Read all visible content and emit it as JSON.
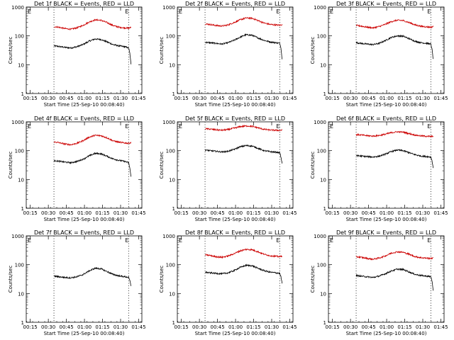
{
  "shared": {
    "ylabel": "Counts/sec",
    "xlabel": "Start Time (25-Sep-10 00:08:40)",
    "x_tick_labels": [
      "00:15",
      "00:30",
      "00:45",
      "01:00",
      "01:15",
      "01:30",
      "01:45"
    ],
    "y_tick_labels": [
      "1",
      "10",
      "100",
      "1000"
    ],
    "event_marker_label": "E",
    "colors": {
      "events": "#000000",
      "lld": "#cc0000",
      "axes": "#000000"
    }
  },
  "chart_data": [
    {
      "type": "line",
      "title": "Det 1f BLACK = Events, RED = LLD",
      "x_unit": "minutes after 00:08:40",
      "ylim": [
        1,
        1000
      ],
      "yscale": "log",
      "x": [
        26,
        30,
        35,
        40,
        45,
        50,
        55,
        60,
        65,
        70,
        75,
        80,
        85,
        88,
        89,
        90
      ],
      "series": [
        {
          "name": "Events",
          "color": "#000000",
          "values": [
            45,
            43,
            40,
            38,
            42,
            50,
            65,
            78,
            75,
            62,
            50,
            45,
            42,
            38,
            25,
            10
          ]
        },
        {
          "name": "LLD",
          "color": "#cc0000",
          "values": [
            210,
            200,
            180,
            170,
            190,
            230,
            300,
            360,
            350,
            290,
            230,
            200,
            190,
            185,
            190,
            200
          ]
        }
      ],
      "event_markers_x": [
        26,
        88
      ],
      "vlines_x": [
        26,
        88
      ]
    },
    {
      "type": "line",
      "title": "Det 2f BLACK = Events, RED = LLD",
      "x_unit": "minutes after 00:08:40",
      "ylim": [
        1,
        1000
      ],
      "yscale": "log",
      "x": [
        26,
        30,
        35,
        40,
        45,
        50,
        55,
        60,
        65,
        70,
        75,
        80,
        85,
        88,
        89,
        90
      ],
      "series": [
        {
          "name": "Events",
          "color": "#000000",
          "values": [
            60,
            58,
            55,
            52,
            58,
            70,
            90,
            110,
            105,
            85,
            70,
            62,
            58,
            55,
            40,
            15
          ]
        },
        {
          "name": "LLD",
          "color": "#cc0000",
          "values": [
            260,
            250,
            230,
            220,
            240,
            290,
            360,
            420,
            410,
            340,
            280,
            250,
            240,
            235,
            240,
            245
          ]
        }
      ],
      "event_markers_x": [
        26,
        88
      ],
      "vlines_x": [
        26,
        88
      ]
    },
    {
      "type": "line",
      "title": "Det 3f BLACK = Events, RED = LLD",
      "x_unit": "minutes after 00:08:40",
      "ylim": [
        1,
        1000
      ],
      "yscale": "log",
      "x": [
        26,
        30,
        35,
        40,
        45,
        50,
        55,
        60,
        65,
        70,
        75,
        80,
        85,
        88,
        89,
        90
      ],
      "series": [
        {
          "name": "Events",
          "color": "#000000",
          "values": [
            58,
            55,
            52,
            50,
            55,
            68,
            88,
            100,
            98,
            80,
            65,
            58,
            55,
            52,
            35,
            15
          ]
        },
        {
          "name": "LLD",
          "color": "#cc0000",
          "values": [
            230,
            220,
            200,
            190,
            210,
            250,
            310,
            350,
            340,
            290,
            240,
            215,
            205,
            200,
            205,
            210
          ]
        }
      ],
      "event_markers_x": [
        26,
        88
      ],
      "vlines_x": [
        26,
        88
      ]
    },
    {
      "type": "line",
      "title": "Det 4f BLACK = Events, RED = LLD",
      "x_unit": "minutes after 00:08:40",
      "ylim": [
        1,
        1000
      ],
      "yscale": "log",
      "x": [
        26,
        30,
        35,
        40,
        45,
        50,
        55,
        60,
        65,
        70,
        75,
        80,
        85,
        88,
        89,
        90
      ],
      "series": [
        {
          "name": "Events",
          "color": "#000000",
          "values": [
            45,
            43,
            40,
            38,
            42,
            50,
            65,
            80,
            78,
            64,
            52,
            46,
            42,
            38,
            25,
            12
          ]
        },
        {
          "name": "LLD",
          "color": "#cc0000",
          "values": [
            200,
            190,
            170,
            160,
            180,
            220,
            290,
            340,
            330,
            280,
            220,
            195,
            185,
            180,
            185,
            190
          ]
        }
      ],
      "event_markers_x": [
        26,
        88
      ],
      "vlines_x": [
        26,
        88
      ]
    },
    {
      "type": "line",
      "title": "Det 5f BLACK = Events, RED = LLD",
      "x_unit": "minutes after 00:08:40",
      "ylim": [
        1,
        1000
      ],
      "yscale": "log",
      "x": [
        26,
        30,
        35,
        40,
        45,
        50,
        55,
        60,
        65,
        70,
        75,
        80,
        85,
        88,
        89,
        90
      ],
      "series": [
        {
          "name": "Events",
          "color": "#000000",
          "values": [
            105,
            100,
            95,
            90,
            95,
            110,
            135,
            150,
            145,
            120,
            100,
            92,
            88,
            85,
            60,
            35
          ]
        },
        {
          "name": "LLD",
          "color": "#cc0000",
          "values": [
            580,
            560,
            530,
            510,
            540,
            600,
            680,
            720,
            700,
            620,
            550,
            520,
            510,
            505,
            510,
            520
          ]
        }
      ],
      "event_markers_x": [
        26,
        88
      ],
      "vlines_x": [
        26,
        88
      ]
    },
    {
      "type": "line",
      "title": "Det 6f BLACK = Events, RED = LLD",
      "x_unit": "minutes after 00:08:40",
      "ylim": [
        1,
        1000
      ],
      "yscale": "log",
      "x": [
        26,
        30,
        35,
        40,
        45,
        50,
        55,
        60,
        65,
        70,
        75,
        80,
        85,
        88,
        89,
        90
      ],
      "series": [
        {
          "name": "Events",
          "color": "#000000",
          "values": [
            68,
            65,
            62,
            60,
            64,
            75,
            92,
            105,
            100,
            85,
            72,
            65,
            62,
            60,
            45,
            25
          ]
        },
        {
          "name": "LLD",
          "color": "#cc0000",
          "values": [
            360,
            350,
            330,
            320,
            335,
            370,
            420,
            450,
            440,
            390,
            345,
            325,
            315,
            310,
            315,
            320
          ]
        }
      ],
      "event_markers_x": [
        26,
        88
      ],
      "vlines_x": [
        26,
        88
      ]
    },
    {
      "type": "line",
      "title": "Det 7f BLACK = Events, RED = LLD",
      "x_unit": "minutes after 00:08:40",
      "ylim": [
        1,
        1000
      ],
      "yscale": "log",
      "x": [
        26,
        30,
        35,
        40,
        45,
        50,
        55,
        60,
        65,
        70,
        75,
        80,
        85,
        88,
        89,
        90
      ],
      "series": [
        {
          "name": "Events",
          "color": "#000000",
          "values": [
            40,
            38,
            36,
            35,
            38,
            45,
            60,
            75,
            72,
            58,
            46,
            41,
            38,
            36,
            28,
            18
          ]
        }
      ],
      "event_markers_x": [
        26,
        88
      ],
      "vlines_x": [
        26,
        88
      ]
    },
    {
      "type": "line",
      "title": "Det 8f BLACK = Events, RED = LLD",
      "x_unit": "minutes after 00:08:40",
      "ylim": [
        1,
        1000
      ],
      "yscale": "log",
      "x": [
        26,
        30,
        35,
        40,
        45,
        50,
        55,
        60,
        65,
        70,
        75,
        80,
        85,
        88,
        89,
        90
      ],
      "series": [
        {
          "name": "Events",
          "color": "#000000",
          "values": [
            55,
            52,
            50,
            48,
            52,
            62,
            80,
            95,
            92,
            75,
            62,
            55,
            52,
            50,
            38,
            22
          ]
        },
        {
          "name": "LLD",
          "color": "#cc0000",
          "values": [
            220,
            210,
            190,
            180,
            200,
            240,
            300,
            340,
            330,
            280,
            230,
            205,
            195,
            190,
            195,
            200
          ]
        }
      ],
      "event_markers_x": [
        26,
        88
      ],
      "vlines_x": [
        26,
        88
      ]
    },
    {
      "type": "line",
      "title": "Det 9f BLACK = Events, RED = LLD",
      "x_unit": "minutes after 00:08:40",
      "ylim": [
        1,
        1000
      ],
      "yscale": "log",
      "x": [
        26,
        30,
        35,
        40,
        45,
        50,
        55,
        60,
        65,
        70,
        75,
        80,
        85,
        88,
        89,
        90
      ],
      "series": [
        {
          "name": "Events",
          "color": "#000000",
          "values": [
            42,
            40,
            38,
            36,
            40,
            48,
            60,
            70,
            68,
            56,
            46,
            42,
            40,
            38,
            28,
            12
          ]
        },
        {
          "name": "LLD",
          "color": "#cc0000",
          "values": [
            190,
            180,
            165,
            155,
            170,
            200,
            250,
            280,
            270,
            230,
            190,
            175,
            168,
            165,
            168,
            172
          ]
        }
      ],
      "event_markers_x": [
        26,
        88
      ],
      "vlines_x": [
        26,
        88
      ]
    }
  ]
}
